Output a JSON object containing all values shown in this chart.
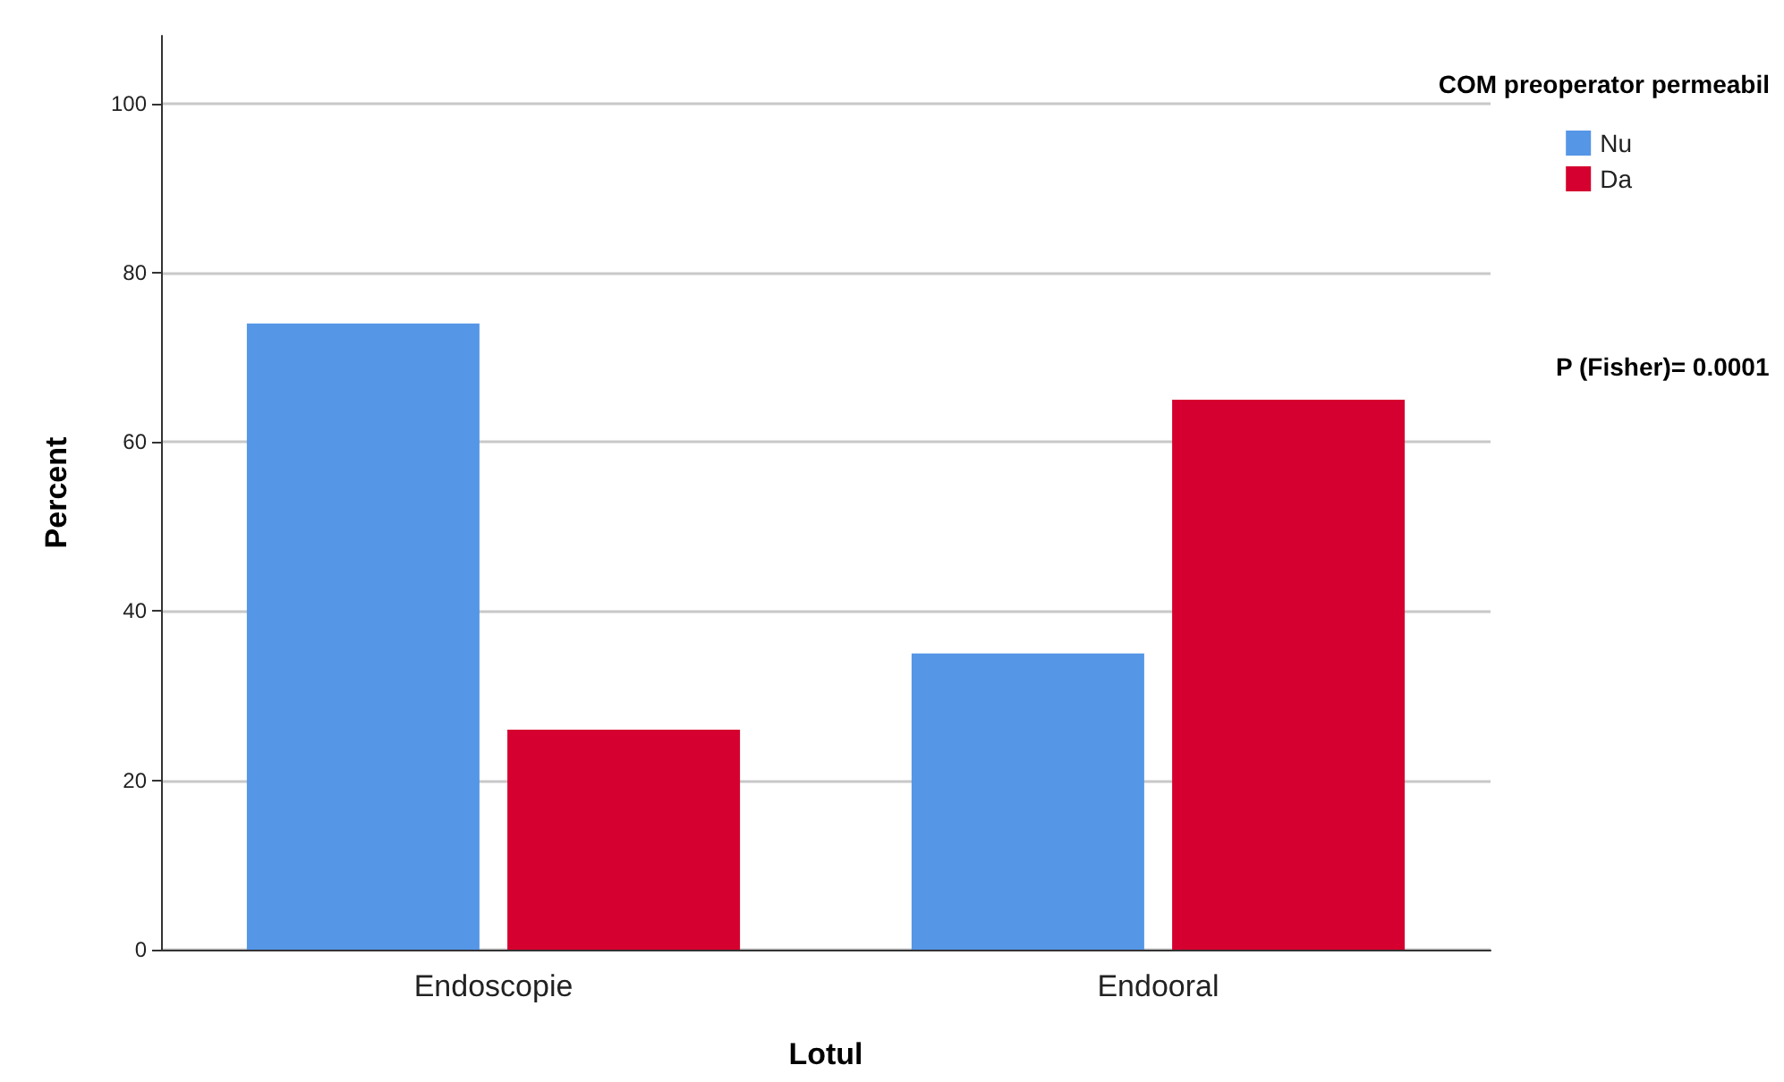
{
  "chart_data": {
    "type": "bar",
    "xlabel": "Lotul",
    "ylabel": "Percent",
    "legend_title": "COM preoperator permeabil",
    "categories": [
      "Endoscopie",
      "Endooral"
    ],
    "series": [
      {
        "name": "Nu",
        "color": "#5596e6",
        "values": [
          74,
          35
        ]
      },
      {
        "name": "Da",
        "color": "#d5002f",
        "values": [
          26,
          65
        ]
      }
    ],
    "ylim": [
      0,
      108
    ],
    "yticks": [
      0,
      20,
      40,
      60,
      80,
      100
    ],
    "grid": "y",
    "legend": "top right",
    "annotations": [
      "P (Fisher)= 0.0001"
    ]
  }
}
